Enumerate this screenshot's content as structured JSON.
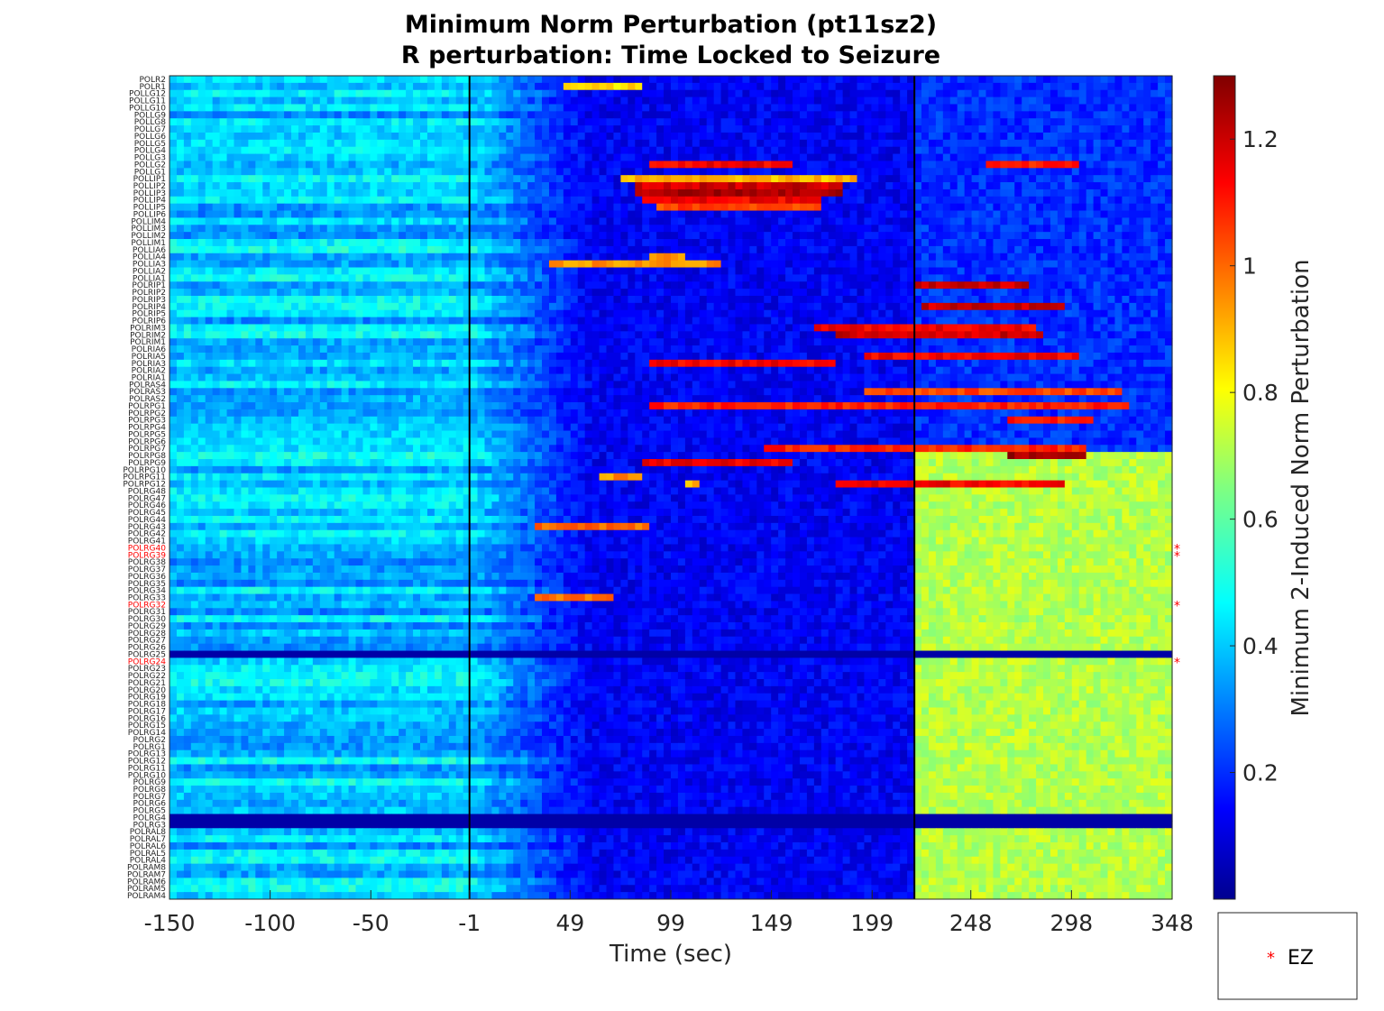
{
  "chart_data": {
    "type": "heatmap",
    "title": [
      "Minimum Norm Perturbation (pt11sz2)",
      "R perturbation:  Time Locked to Seizure"
    ],
    "xlabel": "Time (sec)",
    "ylabel": "",
    "x_ticks": [
      -150,
      -100,
      -50,
      -1,
      49,
      99,
      149,
      199,
      248,
      298,
      348
    ],
    "xlim": [
      -150,
      348
    ],
    "vertical_lines": [
      -1,
      220
    ],
    "colorbar": {
      "label": "Minimum 2-Induced Norm Perturbation",
      "colormap": "jet",
      "clim": [
        0.0,
        1.3
      ],
      "ticks": [
        0.2,
        0.4,
        0.6,
        0.8,
        1,
        1.2
      ]
    },
    "rows": [
      "POLR2",
      "POLR1",
      "POLLG12",
      "POLLG11",
      "POLLG10",
      "POLLG9",
      "POLLG8",
      "POLLG7",
      "POLLG6",
      "POLLG5",
      "POLLG4",
      "POLLG3",
      "POLLG2",
      "POLLG1",
      "POLLIP1",
      "POLLIP2",
      "POLLIP3",
      "POLLIP4",
      "POLLIP5",
      "POLLIP6",
      "POLLIM4",
      "POLLIM3",
      "POLLIM2",
      "POLLIM1",
      "POLLIA6",
      "POLLIA4",
      "POLLIA3",
      "POLLIA2",
      "POLLIA1",
      "POLRIP1",
      "POLRIP2",
      "POLRIP3",
      "POLRIP4",
      "POLRIP5",
      "POLRIP6",
      "POLRIM3",
      "POLRIM2",
      "POLRIM1",
      "POLRIA6",
      "POLRIA5",
      "POLRIA3",
      "POLRIA2",
      "POLRIA1",
      "POLRAS4",
      "POLRAS3",
      "POLRAS2",
      "POLRPG1",
      "POLRPG2",
      "POLRPG3",
      "POLRPG4",
      "POLRPG5",
      "POLRPG6",
      "POLRPG7",
      "POLRPG8",
      "POLRPG9",
      "POLRPG10",
      "POLRPG11",
      "POLRPG12",
      "POLRG48",
      "POLRG47",
      "POLRG46",
      "POLRG45",
      "POLRG44",
      "POLRG43",
      "POLRG42",
      "POLRG41",
      "POLRG40",
      "POLRG39",
      "POLRG38",
      "POLRG37",
      "POLRG36",
      "POLRG35",
      "POLRG34",
      "POLRG33",
      "POLRG32",
      "POLRG31",
      "POLRG30",
      "POLRG29",
      "POLRG28",
      "POLRG27",
      "POLRG26",
      "POLRG25",
      "POLRG24",
      "POLRG23",
      "POLRG22",
      "POLRG21",
      "POLRG20",
      "POLRG19",
      "POLRG18",
      "POLRG17",
      "POLRG16",
      "POLRG15",
      "POLRG14",
      "POLRG2",
      "POLRG1",
      "POLRG13",
      "POLRG12",
      "POLRG11",
      "POLRG10",
      "POLRG9",
      "POLRG8",
      "POLRG7",
      "POLRG6",
      "POLRG5",
      "POLRG4",
      "POLRG3",
      "POLRAL8",
      "POLRAL7",
      "POLRAL6",
      "POLRAL5",
      "POLRAL4",
      "POLRAM8",
      "POLRAM7",
      "POLRAM6",
      "POLRAM5",
      "POLRAM4"
    ],
    "ez_rows": [
      "POLRG40",
      "POLRG39",
      "POLRG32",
      "POLRG24"
    ],
    "base_levels": {
      "description_free": true,
      "pre_seizure": 0.42,
      "ictal": 0.15,
      "post_seizure_upper": 0.22,
      "post_seizure_lower": 0.72
    },
    "high_segments": [
      {
        "row": "POLR1",
        "x": [
          45,
          85
        ],
        "value": 0.85
      },
      {
        "row": "POLLG2",
        "x": [
          88,
          160
        ],
        "value": 1.15
      },
      {
        "row": "POLLG2",
        "x": [
          254,
          300
        ],
        "value": 1.1
      },
      {
        "row": "POLLIP1",
        "x": [
          75,
          190
        ],
        "value": 0.9
      },
      {
        "row": "POLLIP2",
        "x": [
          80,
          185
        ],
        "value": 1.2
      },
      {
        "row": "POLLIP3",
        "x": [
          80,
          185
        ],
        "value": 1.25
      },
      {
        "row": "POLLIP4",
        "x": [
          85,
          175
        ],
        "value": 1.15
      },
      {
        "row": "POLLIP5",
        "x": [
          92,
          175
        ],
        "value": 1.05
      },
      {
        "row": "POLLIA4",
        "x": [
          88,
          105
        ],
        "value": 0.95
      },
      {
        "row": "POLLIA3",
        "x": [
          40,
          125
        ],
        "value": 0.95
      },
      {
        "row": "POLRIP1",
        "x": [
          220,
          278
        ],
        "value": 1.2
      },
      {
        "row": "POLRIP4",
        "x": [
          225,
          295
        ],
        "value": 1.2
      },
      {
        "row": "POLRIM3",
        "x": [
          170,
          280
        ],
        "value": 1.15
      },
      {
        "row": "POLRIM2",
        "x": [
          180,
          283
        ],
        "value": 1.2
      },
      {
        "row": "POLRIA5",
        "x": [
          195,
          300
        ],
        "value": 1.15
      },
      {
        "row": "POLRIA3",
        "x": [
          88,
          180
        ],
        "value": 1.15
      },
      {
        "row": "POLRAS3",
        "x": [
          195,
          322
        ],
        "value": 1.05
      },
      {
        "row": "POLRPG1",
        "x": [
          90,
          325
        ],
        "value": 1.1
      },
      {
        "row": "POLRPG3",
        "x": [
          265,
          310
        ],
        "value": 1.1
      },
      {
        "row": "POLRPG7",
        "x": [
          145,
          305
        ],
        "value": 1.1
      },
      {
        "row": "POLRPG8",
        "x": [
          265,
          305
        ],
        "value": 1.25
      },
      {
        "row": "POLRPG9",
        "x": [
          85,
          158
        ],
        "value": 1.15
      },
      {
        "row": "POLRPG11",
        "x": [
          65,
          85
        ],
        "value": 0.95
      },
      {
        "row": "POLRPG12",
        "x": [
          105,
          115
        ],
        "value": 0.9
      },
      {
        "row": "POLRPG12",
        "x": [
          180,
          295
        ],
        "value": 1.15
      },
      {
        "row": "POLRG43",
        "x": [
          30,
          90
        ],
        "value": 1.0
      },
      {
        "row": "POLRG33",
        "x": [
          30,
          70
        ],
        "value": 1.0
      }
    ],
    "low_rows": [
      "POLRG25",
      "POLRG4",
      "POLRG3"
    ]
  },
  "legend": {
    "entries": [
      {
        "marker": "*",
        "label": "EZ",
        "color": "#ff0000"
      }
    ]
  },
  "colors": {
    "axes": "#262626",
    "ez_label": "#ff0000",
    "normal_label": "#262626",
    "marker_lines": "#000000"
  }
}
